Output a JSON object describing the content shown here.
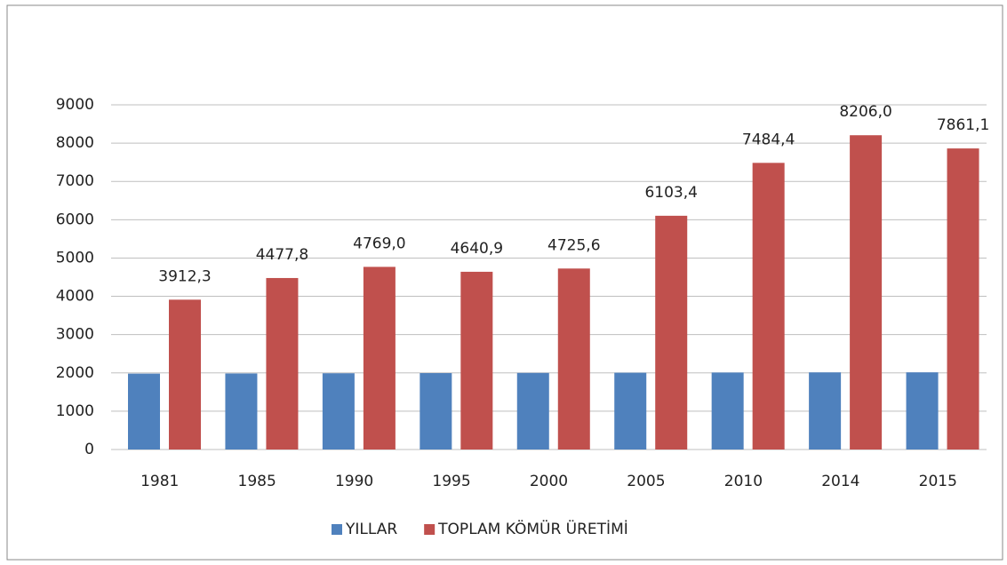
{
  "chart_data": {
    "type": "bar",
    "categories": [
      "1981",
      "1985",
      "1990",
      "1995",
      "2000",
      "2005",
      "2010",
      "2014",
      "2015"
    ],
    "series": [
      {
        "name": "YILLAR",
        "color": "#4f81bd",
        "values": [
          1981,
          1985,
          1990,
          1995,
          2000,
          2005,
          2010,
          2014,
          2015
        ]
      },
      {
        "name": "TOPLAM KÖMÜR ÜRETİMİ",
        "color": "#c0504d",
        "values": [
          3912.3,
          4477.8,
          4769.0,
          4640.9,
          4725.6,
          6103.4,
          7484.4,
          8206.0,
          7861.1
        ],
        "value_labels": [
          "3912,3",
          "4477,8",
          "4769,0",
          "4640,9",
          "4725,6",
          "6103,4",
          "7484,4",
          "8206,0",
          "7861,1"
        ]
      }
    ],
    "ylim": [
      0,
      9000
    ],
    "yticks": [
      0,
      1000,
      2000,
      3000,
      4000,
      5000,
      6000,
      7000,
      8000,
      9000
    ],
    "grid": true,
    "legend": "bottom"
  }
}
